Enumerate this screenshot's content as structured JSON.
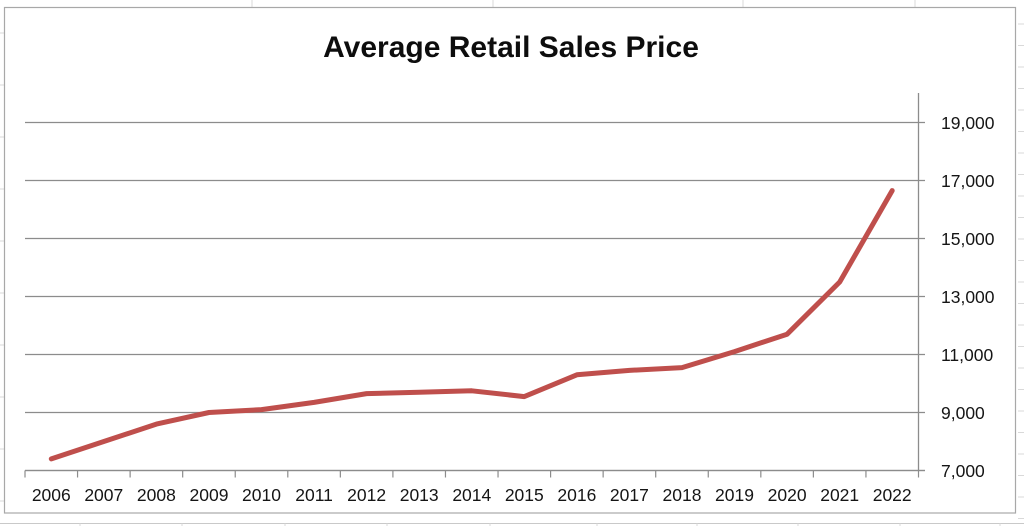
{
  "chart_data": {
    "type": "line",
    "title": "Average Retail Sales Price",
    "categories": [
      "2006",
      "2007",
      "2008",
      "2009",
      "2010",
      "2011",
      "2012",
      "2013",
      "2014",
      "2015",
      "2016",
      "2017",
      "2018",
      "2019",
      "2020",
      "2021",
      "2022"
    ],
    "series": [
      {
        "name": "Average Retail Sales Price",
        "color": "#bf4f4c",
        "values": [
          7400,
          8000,
          8600,
          9000,
          9100,
          9350,
          9650,
          9700,
          9750,
          9550,
          10300,
          10450,
          10550,
          11100,
          11700,
          13500,
          16650
        ]
      }
    ],
    "xlabel": "",
    "ylabel": "",
    "ylim": [
      7000,
      20100
    ],
    "yticks": [
      7000,
      9000,
      11000,
      13000,
      15000,
      17000,
      19000
    ],
    "ytick_labels": [
      "7,000",
      "9,000",
      "11,000",
      "13,000",
      "15,000",
      "17,000",
      "19,000"
    ],
    "y_axis_side": "right",
    "grid": "horizontal",
    "legend": "none",
    "colors": {
      "series_line": "#bf4f4c",
      "gridline": "#8c8c8c",
      "axis": "#8c8c8c",
      "chart_border": "#a8a8a8",
      "sheet_gridline": "#d9d9d9",
      "text": "#151515"
    }
  }
}
